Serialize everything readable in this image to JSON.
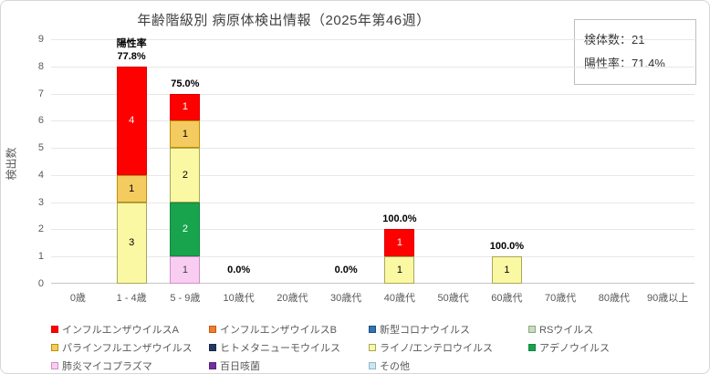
{
  "title": "年齢階級別 病原体検出情報（2025年第46週）",
  "info_box": {
    "specimens": "検体数：21",
    "positivity": "陽性率：71.4%"
  },
  "chart_data": {
    "type": "bar",
    "stacked": true,
    "title": "年齢階級別 病原体検出情報（2025年第46週）",
    "xlabel": "",
    "ylabel": "検出数",
    "ylim": [
      0,
      9
    ],
    "y_ticks": [
      0,
      1,
      2,
      3,
      4,
      5,
      6,
      7,
      8,
      9
    ],
    "grid": true,
    "legend_position": "bottom",
    "categories": [
      "0歳",
      "1 - 4歳",
      "5 - 9歳",
      "10歳代",
      "20歳代",
      "30歳代",
      "40歳代",
      "50歳代",
      "60歳代",
      "70歳代",
      "80歳代",
      "90歳以上"
    ],
    "stack_order": "bottom-to-top is reverse of series order",
    "series": [
      {
        "name": "インフルエンザウイルスA",
        "color": "#fe0000",
        "border": "#e00000",
        "text_color": "#ffffff",
        "values": [
          0,
          4,
          1,
          0,
          0,
          0,
          1,
          0,
          0,
          0,
          0,
          0
        ]
      },
      {
        "name": "インフルエンザウイルスB",
        "color": "#ed7d31",
        "border": "#c55a11",
        "text_color": "#000000",
        "values": [
          0,
          0,
          0,
          0,
          0,
          0,
          0,
          0,
          0,
          0,
          0,
          0
        ]
      },
      {
        "name": "新型コロナウイルス",
        "color": "#2e75b6",
        "border": "#1f4e79",
        "text_color": "#ffffff",
        "values": [
          0,
          0,
          0,
          0,
          0,
          0,
          0,
          0,
          0,
          0,
          0,
          0
        ]
      },
      {
        "name": "RSウイルス",
        "color": "#c9dcc0",
        "border": "#8aa87e",
        "text_color": "#000000",
        "values": [
          0,
          0,
          0,
          0,
          0,
          0,
          0,
          0,
          0,
          0,
          0,
          0
        ]
      },
      {
        "name": "パラインフルエンザウイルス",
        "color": "#f3cb60",
        "border": "#bf9000",
        "text_color": "#000000",
        "values": [
          0,
          1,
          1,
          0,
          0,
          0,
          0,
          0,
          0,
          0,
          0,
          0
        ]
      },
      {
        "name": "ヒトメタニューモウイルス",
        "color": "#203864",
        "border": "#17294a",
        "text_color": "#ffffff",
        "values": [
          0,
          0,
          0,
          0,
          0,
          0,
          0,
          0,
          0,
          0,
          0,
          0
        ]
      },
      {
        "name": "ライノ/エンテロウイルス",
        "color": "#fbf8a4",
        "border": "#a8a85a",
        "text_color": "#000000",
        "values": [
          0,
          3,
          2,
          0,
          0,
          0,
          1,
          0,
          1,
          0,
          0,
          0
        ]
      },
      {
        "name": "アデノウイルス",
        "color": "#17a44c",
        "border": "#12863e",
        "text_color": "#ffffff",
        "values": [
          0,
          0,
          2,
          0,
          0,
          0,
          0,
          0,
          0,
          0,
          0,
          0
        ]
      },
      {
        "name": "肺炎マイコプラズマ",
        "color": "#f9cdf2",
        "border": "#cf8fca",
        "text_color": "#404040",
        "values": [
          0,
          0,
          1,
          0,
          0,
          0,
          0,
          0,
          0,
          0,
          0,
          0
        ]
      },
      {
        "name": "百日咳菌",
        "color": "#7030a0",
        "border": "#58247e",
        "text_color": "#ffffff",
        "values": [
          0,
          0,
          0,
          0,
          0,
          0,
          0,
          0,
          0,
          0,
          0,
          0
        ]
      },
      {
        "name": "その他",
        "color": "#cde6f0",
        "border": "#8fb8cc",
        "text_color": "#000000",
        "values": [
          0,
          0,
          0,
          0,
          0,
          0,
          0,
          0,
          0,
          0,
          0,
          0
        ]
      }
    ],
    "totals_per_category": [
      0,
      8,
      7,
      0,
      0,
      0,
      2,
      0,
      1,
      0,
      0,
      0
    ],
    "positivity_header": "陽性率",
    "positivity_header_category_index": 1,
    "rate_labels": [
      "",
      "77.8%",
      "75.0%",
      "0.0%",
      "",
      "0.0%",
      "100.0%",
      "",
      "100.0%",
      "",
      "",
      ""
    ]
  },
  "style": {
    "gridline_color": "#e7e7e7",
    "axis_color": "#c6c6c6",
    "title_color": "#404040",
    "tick_color": "#595959"
  }
}
